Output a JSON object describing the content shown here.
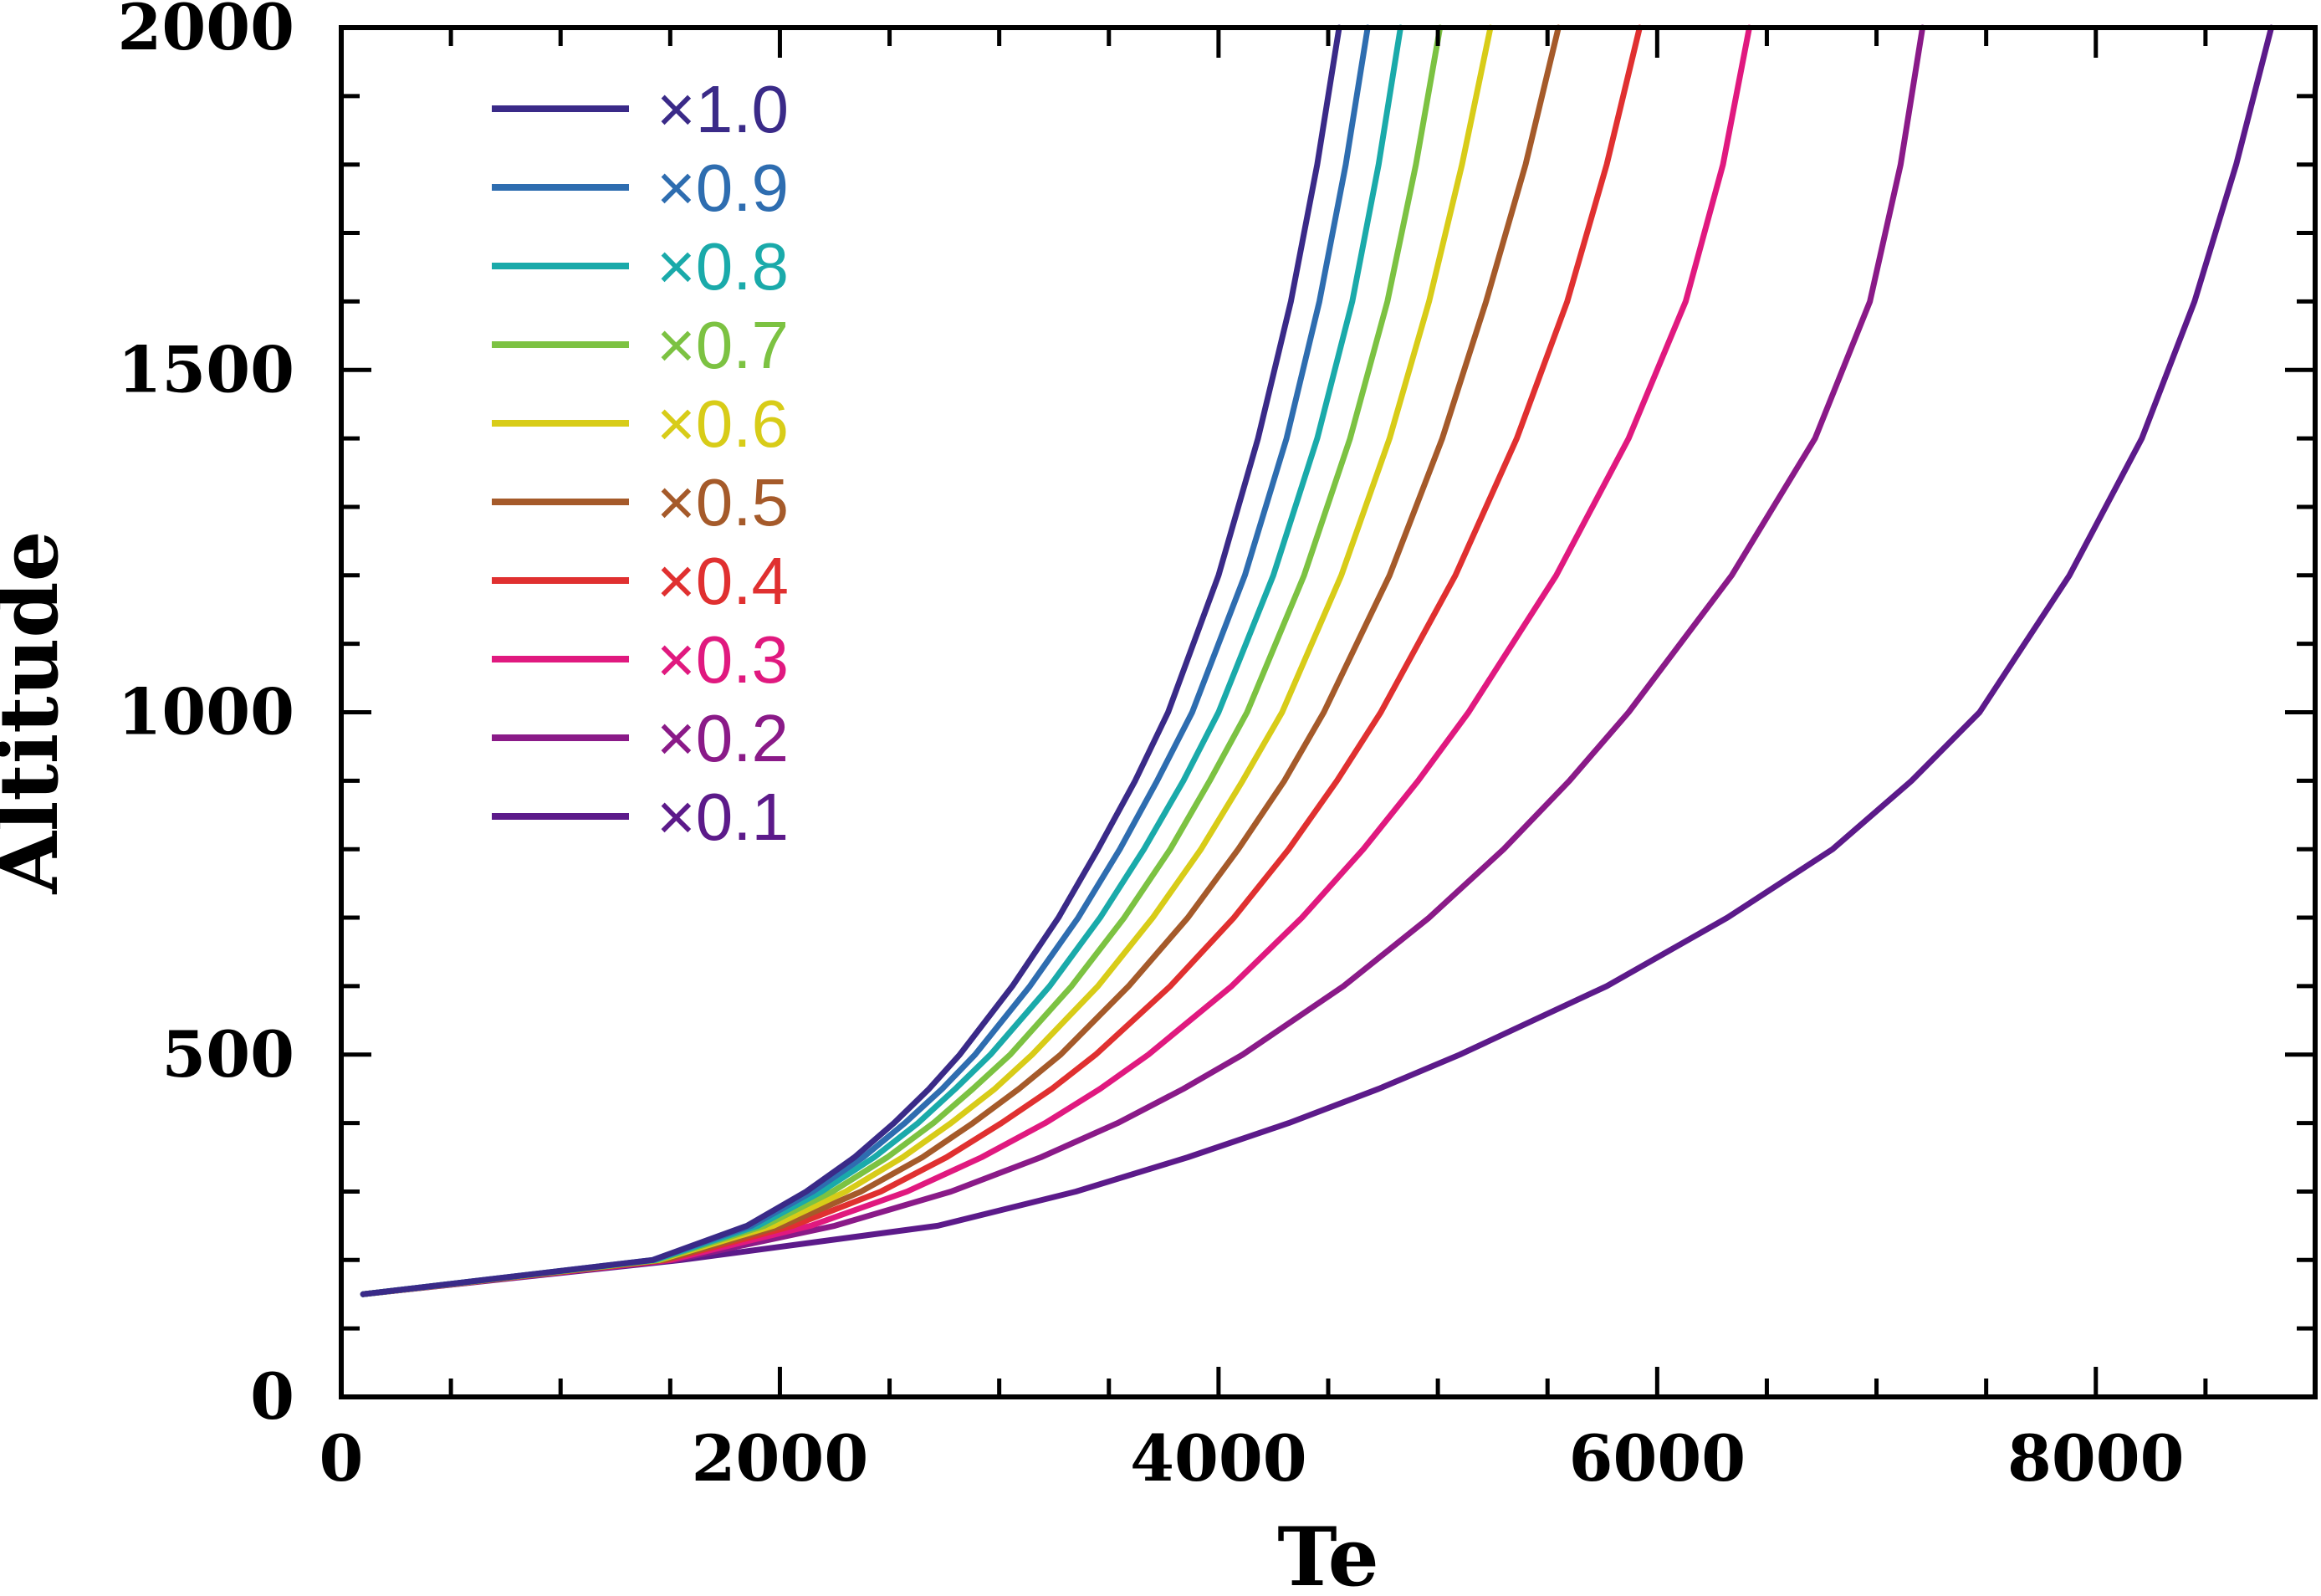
{
  "chart_data": {
    "type": "line",
    "title": "",
    "xlabel": "Te",
    "ylabel": "Altitude",
    "xlim": [
      0,
      9000
    ],
    "ylim": [
      0,
      2000
    ],
    "x_ticks": [
      "0",
      "2000",
      "4000",
      "6000",
      "8000"
    ],
    "y_ticks": [
      "0",
      "500",
      "1000",
      "1500",
      "2000"
    ],
    "grid": false,
    "legend_position": "top-left",
    "altitudes": [
      150,
      200,
      250,
      300,
      350,
      400,
      450,
      500,
      600,
      700,
      800,
      900,
      1000,
      1200,
      1400,
      1600,
      1800,
      2000
    ],
    "series": [
      {
        "name": "×1.0",
        "color": "#3a2a88",
        "x": [
          100,
          1420,
          1850,
          2120,
          2340,
          2520,
          2680,
          2820,
          3060,
          3270,
          3450,
          3620,
          3770,
          4000,
          4180,
          4330,
          4450,
          4550
        ]
      },
      {
        "name": "×0.9",
        "color": "#2e6db0",
        "x": [
          100,
          1420,
          1870,
          2150,
          2380,
          2570,
          2740,
          2890,
          3140,
          3360,
          3550,
          3720,
          3880,
          4120,
          4310,
          4460,
          4580,
          4680
        ]
      },
      {
        "name": "×0.8",
        "color": "#1aaaaa",
        "x": [
          100,
          1430,
          1900,
          2190,
          2430,
          2630,
          2800,
          2960,
          3230,
          3460,
          3660,
          3840,
          4000,
          4250,
          4450,
          4610,
          4730,
          4830
        ]
      },
      {
        "name": "×0.7",
        "color": "#7cc242",
        "x": [
          100,
          1440,
          1930,
          2240,
          2490,
          2700,
          2880,
          3050,
          3330,
          3570,
          3780,
          3960,
          4130,
          4390,
          4600,
          4770,
          4900,
          5010
        ]
      },
      {
        "name": "×0.6",
        "color": "#d8cc18",
        "x": [
          100,
          1450,
          1970,
          2300,
          2560,
          2780,
          2980,
          3150,
          3450,
          3700,
          3920,
          4110,
          4290,
          4560,
          4780,
          4960,
          5110,
          5240
        ]
      },
      {
        "name": "×0.5",
        "color": "#a55a2a",
        "x": [
          100,
          1470,
          2010,
          2370,
          2650,
          2880,
          3090,
          3280,
          3590,
          3860,
          4090,
          4300,
          4480,
          4780,
          5020,
          5220,
          5400,
          5550
        ]
      },
      {
        "name": "×0.4",
        "color": "#e03030",
        "x": [
          100,
          1480,
          2060,
          2460,
          2760,
          3010,
          3240,
          3440,
          3780,
          4070,
          4320,
          4540,
          4740,
          5080,
          5360,
          5590,
          5770,
          5920
        ]
      },
      {
        "name": "×0.3",
        "color": "#e0197f",
        "x": [
          100,
          1500,
          2140,
          2580,
          2920,
          3210,
          3460,
          3680,
          4060,
          4380,
          4660,
          4910,
          5140,
          5540,
          5870,
          6130,
          6300,
          6420
        ]
      },
      {
        "name": "×0.2",
        "color": "#8a1a88",
        "x": [
          100,
          1520,
          2250,
          2780,
          3190,
          3540,
          3840,
          4110,
          4570,
          4960,
          5300,
          5600,
          5870,
          6340,
          6720,
          6970,
          7110,
          7210
        ]
      },
      {
        "name": "×0.1",
        "color": "#5c1a8a",
        "x": [
          100,
          1550,
          2720,
          3350,
          3860,
          4320,
          4730,
          5100,
          5770,
          6320,
          6800,
          7160,
          7470,
          7880,
          8210,
          8450,
          8640,
          8800
        ]
      }
    ]
  }
}
